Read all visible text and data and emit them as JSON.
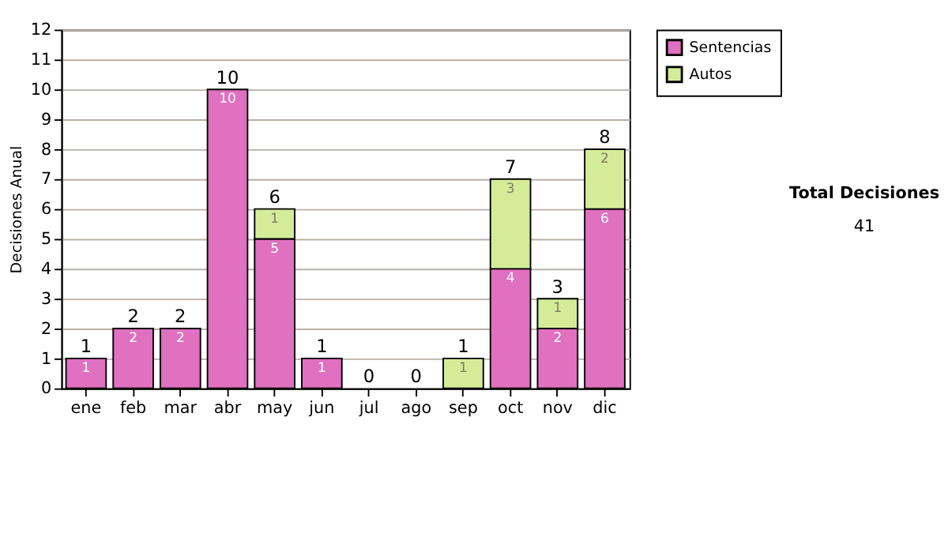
{
  "chart_data": {
    "type": "bar",
    "stacked": true,
    "ylabel": "Decisiones Anual",
    "categories": [
      "ene",
      "feb",
      "mar",
      "abr",
      "may",
      "jun",
      "jul",
      "ago",
      "sep",
      "oct",
      "nov",
      "dic"
    ],
    "series": [
      {
        "name": "Sentencias",
        "color": "#e070c0",
        "values": [
          1,
          2,
          2,
          10,
          5,
          1,
          0,
          0,
          0,
          4,
          2,
          6
        ],
        "value_labels": [
          "1",
          "2",
          "2",
          "10",
          "5",
          "1",
          null,
          null,
          null,
          "4",
          "2",
          "6"
        ]
      },
      {
        "name": "Autos",
        "color": "#d4ec98",
        "values": [
          0,
          0,
          0,
          0,
          1,
          0,
          0,
          0,
          1,
          3,
          1,
          2
        ],
        "value_labels": [
          null,
          null,
          null,
          null,
          "1",
          null,
          null,
          null,
          "1",
          "3",
          "1",
          "2"
        ]
      }
    ],
    "totals": [
      "1",
      "2",
      "2",
      "10",
      "6",
      "1",
      "0",
      "0",
      "1",
      "7",
      "3",
      "8"
    ],
    "ylim": [
      0,
      12
    ],
    "yticks": [
      0,
      1,
      2,
      3,
      4,
      5,
      6,
      7,
      8,
      9,
      10,
      11,
      12
    ],
    "grid": "y",
    "legend": "right",
    "annotations": [
      "Total Decisiones",
      "41"
    ]
  }
}
